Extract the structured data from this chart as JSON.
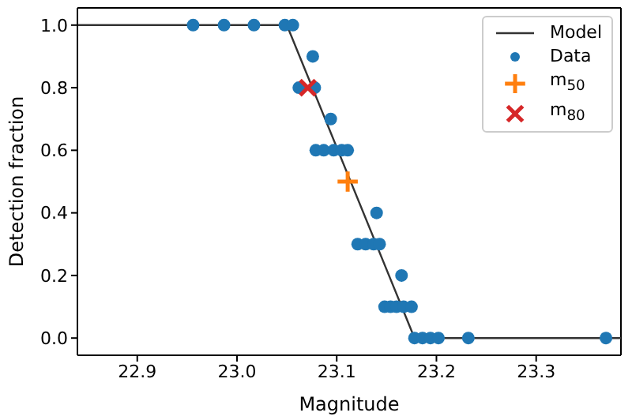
{
  "chart_data": {
    "type": "scatter",
    "xlabel": "Magnitude",
    "ylabel": "Detection fraction",
    "xlim": [
      22.84,
      23.385
    ],
    "ylim": [
      -0.055,
      1.055
    ],
    "xticks": [
      {
        "value": 22.9,
        "label": "22.9"
      },
      {
        "value": 23,
        "label": "23.0"
      },
      {
        "value": 23.1,
        "label": "23.1"
      },
      {
        "value": 23.2,
        "label": "23.2"
      },
      {
        "value": 23.3,
        "label": "23.3"
      }
    ],
    "yticks": [
      {
        "value": 0,
        "label": "0.0"
      },
      {
        "value": 0.2,
        "label": "0.2"
      },
      {
        "value": 0.4,
        "label": "0.4"
      },
      {
        "value": 0.6,
        "label": "0.6"
      },
      {
        "value": 0.8,
        "label": "0.8"
      },
      {
        "value": 1,
        "label": "1.0"
      }
    ],
    "legend": "top right",
    "grid": false,
    "series": [
      {
        "name": "Model",
        "type": "line",
        "color": "#333333",
        "marker": "none",
        "x": [
          22.84,
          23.05,
          23.178,
          23.385
        ],
        "values": [
          1,
          1,
          0,
          0
        ]
      },
      {
        "name": "Data",
        "color": "#1f77b4",
        "marker": "circle",
        "x": [
          22.956,
          22.987,
          23.017,
          23.048,
          23.056,
          23.076,
          23.062,
          23.078,
          23.094,
          23.079,
          23.087,
          23.097,
          23.105,
          23.111,
          23.14,
          23.121,
          23.129,
          23.137,
          23.143,
          23.165,
          23.148,
          23.154,
          23.16,
          23.167,
          23.175,
          23.178,
          23.186,
          23.194,
          23.202,
          23.232,
          23.37
        ],
        "values": [
          1,
          1,
          1,
          1,
          1,
          0.9,
          0.8,
          0.8,
          0.7,
          0.6,
          0.6,
          0.6,
          0.6,
          0.6,
          0.4,
          0.3,
          0.3,
          0.3,
          0.3,
          0.2,
          0.1,
          0.1,
          0.1,
          0.1,
          0.1,
          0,
          0,
          0,
          0,
          0,
          0
        ]
      },
      {
        "name": "m$_{50}$",
        "type": "scatter",
        "color": "#ff7f0e",
        "marker": "plus",
        "x": [
          23.111
        ],
        "values": [
          0.5
        ]
      },
      {
        "name": "m$_{80}$",
        "type": "scatter",
        "color": "#d62728",
        "marker": "cross",
        "x": [
          23.071
        ],
        "values": [
          0.8
        ]
      }
    ]
  }
}
